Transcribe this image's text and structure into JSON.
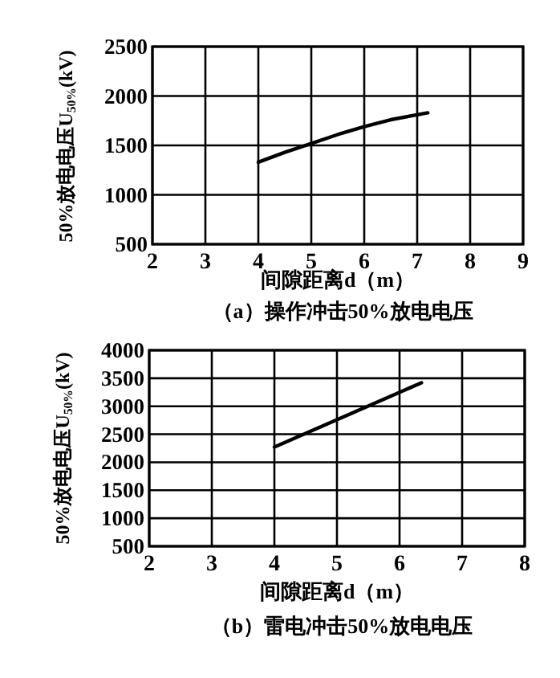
{
  "chart_data": [
    {
      "type": "line",
      "title": "（a）操作冲击50%放电电压",
      "xlabel": "间隙距离d（m）",
      "ylabel": "50%放电电压U$_{50%}$(kV)",
      "xlim": [
        2,
        9
      ],
      "ylim": [
        500,
        2500
      ],
      "xticks": [
        2,
        3,
        4,
        5,
        6,
        7,
        8,
        9
      ],
      "yticks": [
        500,
        1000,
        1500,
        2000,
        2500
      ],
      "grid": true,
      "series": [
        {
          "color": "#000000",
          "x": [
            4,
            4.5,
            5,
            5.5,
            6,
            6.5,
            7,
            7.2
          ],
          "values": [
            1330,
            1430,
            1520,
            1610,
            1690,
            1760,
            1810,
            1830
          ]
        }
      ]
    },
    {
      "type": "line",
      "title": "（b）雷电冲击50%放电电压",
      "xlabel": "间隙距离d（m）",
      "ylabel": "50%放电电压U$_{50%}$(kV)",
      "xlim": [
        2,
        8
      ],
      "ylim": [
        500,
        4000
      ],
      "xticks": [
        2,
        3,
        4,
        5,
        6,
        7,
        8
      ],
      "yticks": [
        500,
        1000,
        1500,
        2000,
        2500,
        3000,
        3500,
        4000
      ],
      "grid": true,
      "series": [
        {
          "color": "#000000",
          "x": [
            4,
            6.35
          ],
          "values": [
            2270,
            3420
          ]
        }
      ]
    }
  ]
}
